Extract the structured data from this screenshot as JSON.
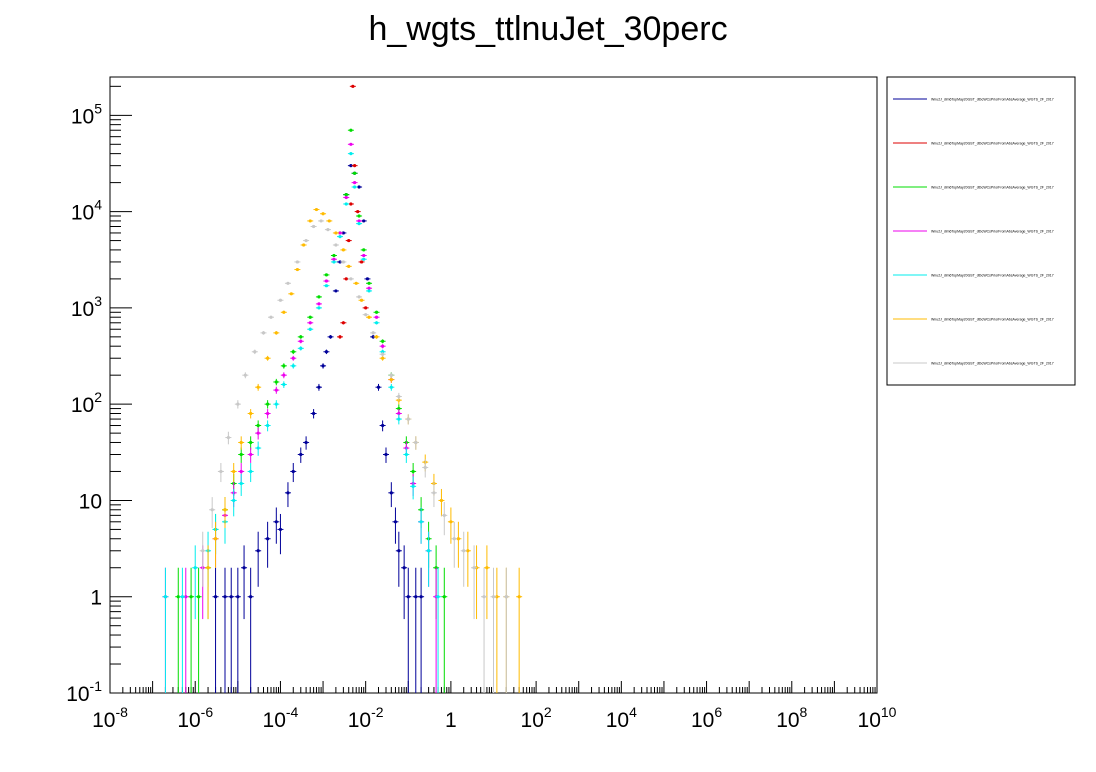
{
  "chart_data": {
    "type": "scatter",
    "title": "h_wgts_ttlnuJet_30perc",
    "xlabel": "",
    "ylabel": "",
    "x_scale": "log",
    "y_scale": "log",
    "xlim": [
      1e-08,
      10000000000.0
    ],
    "ylim": [
      0.1,
      250000
    ],
    "grid": false,
    "legend_position": "right",
    "x_tick_labels": [
      {
        "base": "10",
        "exp": "-8",
        "value": 1e-08
      },
      {
        "base": "10",
        "exp": "-6",
        "value": 1e-06
      },
      {
        "base": "10",
        "exp": "-4",
        "value": 0.0001
      },
      {
        "base": "10",
        "exp": "-2",
        "value": 0.01
      },
      {
        "base": "1",
        "exp": "",
        "value": 1
      },
      {
        "base": "10",
        "exp": "2",
        "value": 100
      },
      {
        "base": "10",
        "exp": "4",
        "value": 10000
      },
      {
        "base": "10",
        "exp": "6",
        "value": 1000000
      },
      {
        "base": "10",
        "exp": "8",
        "value": 100000000
      },
      {
        "base": "10",
        "exp": "10",
        "value": 10000000000
      }
    ],
    "y_tick_labels": [
      {
        "base": "10",
        "exp": "-1",
        "value": 0.1
      },
      {
        "base": "1",
        "exp": "",
        "value": 1
      },
      {
        "base": "10",
        "exp": "",
        "value": 10
      },
      {
        "base": "10",
        "exp": "2",
        "value": 100
      },
      {
        "base": "10",
        "exp": "3",
        "value": 1000
      },
      {
        "base": "10",
        "exp": "4",
        "value": 10000
      },
      {
        "base": "10",
        "exp": "5",
        "value": 100000
      }
    ],
    "series": [
      {
        "name": "Wnu2J_dim6TopMay20GST_dtbcWCsPriorFromAbsAverage_WGTS_2F_2017",
        "color": "#000099",
        "points": [
          [
            3e-06,
            1
          ],
          [
            5e-06,
            1
          ],
          [
            7e-06,
            1
          ],
          [
            1e-05,
            1
          ],
          [
            1.4e-05,
            2
          ],
          [
            2e-05,
            1
          ],
          [
            3e-05,
            3
          ],
          [
            5e-05,
            4
          ],
          [
            8e-05,
            6
          ],
          [
            0.0001,
            5
          ],
          [
            0.00015,
            12
          ],
          [
            0.0002,
            20
          ],
          [
            0.0003,
            30
          ],
          [
            0.0004,
            40
          ],
          [
            0.0006,
            80
          ],
          [
            0.0008,
            150
          ],
          [
            0.001,
            250
          ],
          [
            0.0012,
            350
          ],
          [
            0.0015,
            500
          ],
          [
            0.002,
            1500
          ],
          [
            0.0025,
            3000
          ],
          [
            0.003,
            6000
          ],
          [
            0.0035,
            15000
          ],
          [
            0.0045,
            30000
          ],
          [
            0.0055,
            25000
          ],
          [
            0.007,
            18000
          ],
          [
            0.009,
            8000
          ],
          [
            0.011,
            2000
          ],
          [
            0.015,
            500
          ],
          [
            0.02,
            150
          ],
          [
            0.025,
            60
          ],
          [
            0.03,
            30
          ],
          [
            0.04,
            12
          ],
          [
            0.05,
            6
          ],
          [
            0.06,
            3
          ],
          [
            0.08,
            2
          ],
          [
            0.1,
            1
          ],
          [
            0.15,
            1
          ],
          [
            0.2,
            1
          ]
        ]
      },
      {
        "name": "Wnu2J_dim6TopMay20GST_dtbcWCsPriorFromAbsAverage_WGTS_2F_2017",
        "color": "#dd0000",
        "points": [
          [
            0.0025,
            500
          ],
          [
            0.003,
            700
          ],
          [
            0.0035,
            2000
          ],
          [
            0.004,
            5000
          ],
          [
            0.0045,
            12000
          ],
          [
            0.005,
            200000
          ],
          [
            0.0055,
            30000
          ],
          [
            0.0065,
            10000
          ],
          [
            0.008,
            3000
          ],
          [
            0.01,
            1000
          ]
        ]
      },
      {
        "name": "Wnu2J_dim6TopMay20GST_dtbcWCsPriorFromAbsAverage_WGTS_2F_2017",
        "color": "#00dd00",
        "points": [
          [
            4e-07,
            1
          ],
          [
            8e-07,
            1
          ],
          [
            1.2e-06,
            1
          ],
          [
            2e-06,
            2
          ],
          [
            3e-06,
            5
          ],
          [
            5e-06,
            8
          ],
          [
            8e-06,
            15
          ],
          [
            1.2e-05,
            30
          ],
          [
            2e-05,
            40
          ],
          [
            3e-05,
            60
          ],
          [
            5e-05,
            100
          ],
          [
            8e-05,
            170
          ],
          [
            0.00012,
            250
          ],
          [
            0.0002,
            350
          ],
          [
            0.0003,
            500
          ],
          [
            0.0005,
            800
          ],
          [
            0.0008,
            1300
          ],
          [
            0.0012,
            2200
          ],
          [
            0.0018,
            3500
          ],
          [
            0.0025,
            6000
          ],
          [
            0.0035,
            15000
          ],
          [
            0.0045,
            70000
          ],
          [
            0.0055,
            25000
          ],
          [
            0.007,
            9000
          ],
          [
            0.009,
            4000
          ],
          [
            0.012,
            1800
          ],
          [
            0.018,
            900
          ],
          [
            0.025,
            450
          ],
          [
            0.04,
            200
          ],
          [
            0.06,
            90
          ],
          [
            0.09,
            40
          ],
          [
            0.13,
            20
          ],
          [
            0.2,
            8
          ],
          [
            0.3,
            4
          ],
          [
            0.45,
            2
          ],
          [
            0.7,
            1
          ]
        ]
      },
      {
        "name": "Wnu2J_dim6TopMay20GST_dtbcWCsPriorFromAbsAverage_WGTS_2F_2017",
        "color": "#ee00ee",
        "points": [
          [
            2e-07,
            1
          ],
          [
            6e-07,
            1
          ],
          [
            1.5e-06,
            2
          ],
          [
            3e-06,
            4
          ],
          [
            5e-06,
            7
          ],
          [
            8e-06,
            12
          ],
          [
            1.2e-05,
            20
          ],
          [
            2e-05,
            30
          ],
          [
            3e-05,
            50
          ],
          [
            5e-05,
            80
          ],
          [
            8e-05,
            140
          ],
          [
            0.00012,
            200
          ],
          [
            0.0002,
            300
          ],
          [
            0.0003,
            450
          ],
          [
            0.0005,
            700
          ],
          [
            0.0008,
            1100
          ],
          [
            0.0012,
            1900
          ],
          [
            0.0018,
            3200
          ],
          [
            0.0025,
            6000
          ],
          [
            0.0035,
            14000
          ],
          [
            0.0045,
            50000
          ],
          [
            0.0055,
            20000
          ],
          [
            0.007,
            8000
          ],
          [
            0.009,
            3500
          ],
          [
            0.012,
            1600
          ],
          [
            0.018,
            800
          ],
          [
            0.025,
            400
          ],
          [
            0.04,
            180
          ],
          [
            0.06,
            80
          ],
          [
            0.09,
            35
          ],
          [
            0.13,
            15
          ],
          [
            0.2,
            6
          ],
          [
            0.3,
            3
          ],
          [
            0.45,
            1
          ]
        ]
      },
      {
        "name": "Wnu2J_dim6TopMay20GST_dtbcWCsPriorFromAbsAverage_WGTS_2F_2017",
        "color": "#00eeee",
        "points": [
          [
            2e-07,
            1
          ],
          [
            5e-07,
            1
          ],
          [
            1e-06,
            2
          ],
          [
            2e-06,
            3
          ],
          [
            3e-06,
            5
          ],
          [
            5e-06,
            6
          ],
          [
            8e-06,
            10
          ],
          [
            1.2e-05,
            15
          ],
          [
            2e-05,
            20
          ],
          [
            3e-05,
            35
          ],
          [
            5e-05,
            60
          ],
          [
            8e-05,
            100
          ],
          [
            0.00012,
            160
          ],
          [
            0.0002,
            250
          ],
          [
            0.0003,
            380
          ],
          [
            0.0005,
            600
          ],
          [
            0.0008,
            1000
          ],
          [
            0.0012,
            1700
          ],
          [
            0.0018,
            3000
          ],
          [
            0.0025,
            5500
          ],
          [
            0.0035,
            12000
          ],
          [
            0.0045,
            40000
          ],
          [
            0.0055,
            18000
          ],
          [
            0.007,
            7500
          ],
          [
            0.009,
            3200
          ],
          [
            0.012,
            1500
          ],
          [
            0.018,
            700
          ],
          [
            0.025,
            350
          ],
          [
            0.04,
            150
          ],
          [
            0.06,
            70
          ],
          [
            0.09,
            30
          ],
          [
            0.13,
            14
          ],
          [
            0.2,
            6
          ],
          [
            0.3,
            3
          ],
          [
            0.5,
            1
          ]
        ]
      },
      {
        "name": "Wnu2J_dim6TopMay20GST_dtbcWCsPriorFromAbsAverage_WGTS_2F_2017",
        "color": "#ffbb00",
        "points": [
          [
            2e-06,
            2
          ],
          [
            3e-06,
            4
          ],
          [
            5e-06,
            8
          ],
          [
            8e-06,
            20
          ],
          [
            1.2e-05,
            40
          ],
          [
            2e-05,
            80
          ],
          [
            3e-05,
            150
          ],
          [
            5e-05,
            300
          ],
          [
            8e-05,
            550
          ],
          [
            0.00012,
            900
          ],
          [
            0.00018,
            1400
          ],
          [
            0.00025,
            2500
          ],
          [
            0.00035,
            4500
          ],
          [
            0.0005,
            8000
          ],
          [
            0.0007,
            10500
          ],
          [
            0.001,
            9500
          ],
          [
            0.0014,
            8000
          ],
          [
            0.002,
            6000
          ],
          [
            0.003,
            4000
          ],
          [
            0.004,
            2700
          ],
          [
            0.006,
            1800
          ],
          [
            0.008,
            1200
          ],
          [
            0.012,
            800
          ],
          [
            0.018,
            500
          ],
          [
            0.025,
            300
          ],
          [
            0.04,
            180
          ],
          [
            0.06,
            110
          ],
          [
            0.1,
            70
          ],
          [
            0.15,
            40
          ],
          [
            0.25,
            25
          ],
          [
            0.4,
            15
          ],
          [
            0.6,
            10
          ],
          [
            1,
            6
          ],
          [
            1.5,
            4
          ],
          [
            2.5,
            3
          ],
          [
            4,
            2
          ],
          [
            7,
            2
          ],
          [
            12,
            1
          ],
          [
            20,
            1
          ],
          [
            40,
            1
          ]
        ]
      },
      {
        "name": "Wnu2J_dim6TopMay20GST_dtbcWCsPriorFromAbsAverage_WGTS_2F_2017",
        "color": "#c8c8c8",
        "points": [
          [
            1.5e-06,
            3
          ],
          [
            2.5e-06,
            8
          ],
          [
            4e-06,
            20
          ],
          [
            6e-06,
            45
          ],
          [
            1e-05,
            100
          ],
          [
            1.5e-05,
            200
          ],
          [
            2.5e-05,
            350
          ],
          [
            4e-05,
            550
          ],
          [
            6e-05,
            800
          ],
          [
            0.0001,
            1200
          ],
          [
            0.00015,
            1800
          ],
          [
            0.00025,
            3000
          ],
          [
            0.0004,
            5000
          ],
          [
            0.0006,
            7000
          ],
          [
            0.0009,
            8000
          ],
          [
            0.0013,
            6500
          ],
          [
            0.002,
            4500
          ],
          [
            0.003,
            3000
          ],
          [
            0.0045,
            2000
          ],
          [
            0.007,
            1300
          ],
          [
            0.01,
            850
          ],
          [
            0.015,
            550
          ],
          [
            0.025,
            330
          ],
          [
            0.04,
            200
          ],
          [
            0.06,
            120
          ],
          [
            0.1,
            70
          ],
          [
            0.15,
            40
          ],
          [
            0.25,
            22
          ],
          [
            0.4,
            12
          ],
          [
            0.7,
            7
          ],
          [
            1.2,
            4
          ],
          [
            2,
            3
          ],
          [
            3.5,
            2
          ],
          [
            6,
            1
          ],
          [
            10,
            1
          ],
          [
            20,
            1
          ]
        ]
      }
    ]
  }
}
